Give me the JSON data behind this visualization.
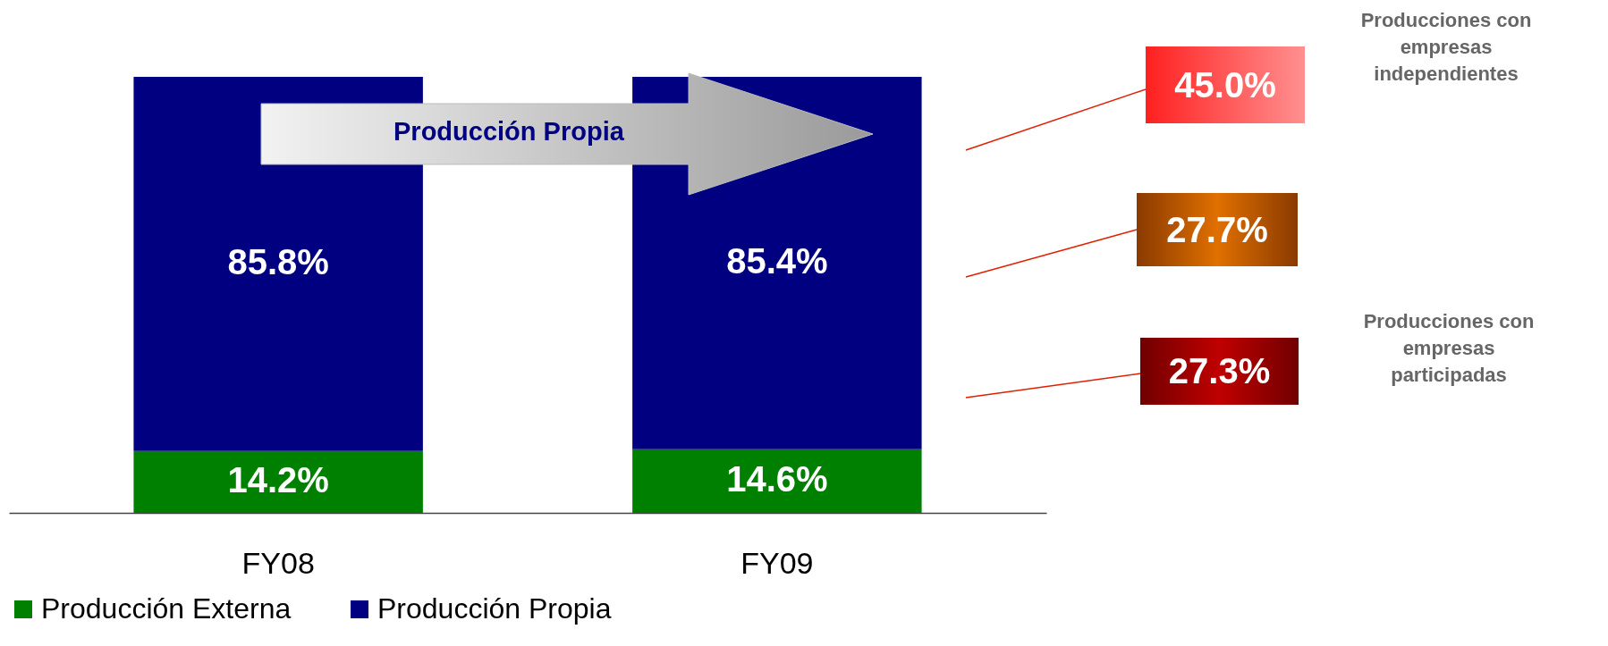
{
  "chart_data": {
    "type": "bar",
    "stacked": true,
    "legend": "bottom",
    "categories": [
      "FY08",
      "FY09"
    ],
    "series": [
      {
        "name": "Producción Externa",
        "color": "#008000",
        "values": [
          14.2,
          14.6
        ],
        "value_labels": [
          "14.2%",
          "14.6%"
        ]
      },
      {
        "name": "Producción Propia",
        "color": "#000080",
        "values": [
          85.8,
          85.4
        ],
        "value_labels": [
          "85.8%",
          "85.4%"
        ]
      }
    ],
    "annotations": [
      "Producción Propia",
      "45.0%",
      "Producciones con empresas independientes",
      "27.7%",
      "27.3%",
      "Producciones con empresas participadas"
    ]
  }
}
